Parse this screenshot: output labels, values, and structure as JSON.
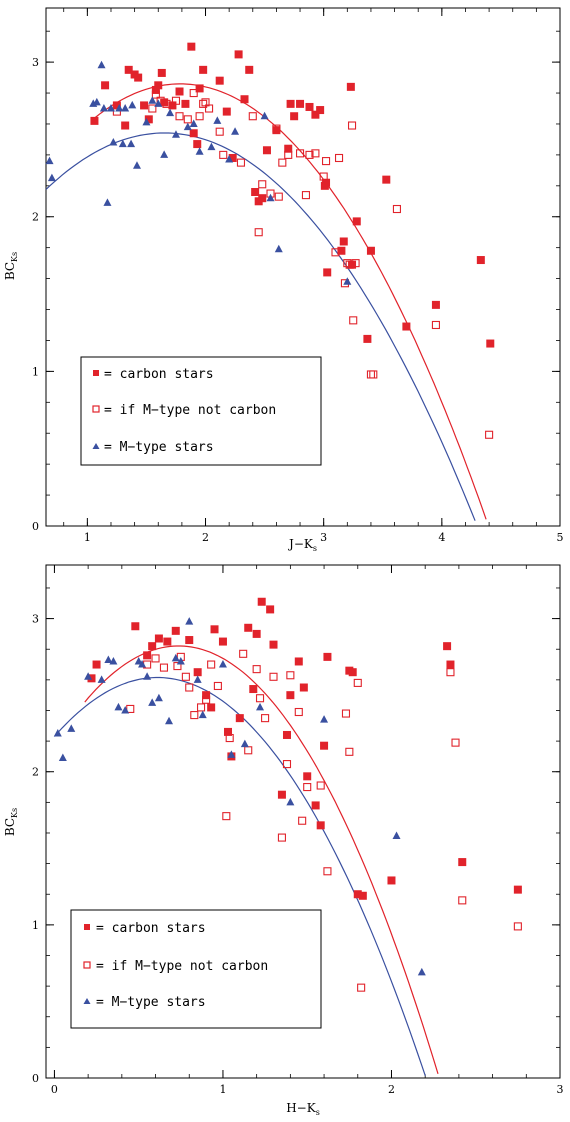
{
  "colors": {
    "carbon": "#e1232b",
    "mtype": "#3a50a0",
    "axis": "#000000"
  },
  "chart_data": [
    {
      "type": "scatter",
      "xlabel": "J−K",
      "xlabel_sub": "s",
      "ylabel": "BC",
      "ylabel_sub": "Ks",
      "xlim": [
        0.65,
        5.0
      ],
      "ylim": [
        0,
        3.35
      ],
      "xticks": [
        1,
        2,
        3,
        4,
        5
      ],
      "yticks": [
        0,
        1,
        2,
        3
      ],
      "legend": [
        {
          "marker": "filled-square",
          "label": "= carbon stars"
        },
        {
          "marker": "open-square",
          "label": "= if M−type not carbon"
        },
        {
          "marker": "triangle",
          "label": "= M−type stars"
        }
      ],
      "series": [
        {
          "marker": "filled-square",
          "x": [
            1.06,
            1.15,
            1.25,
            1.32,
            1.35,
            1.4,
            1.43,
            1.48,
            1.52,
            1.58,
            1.6,
            1.63,
            1.65,
            1.72,
            1.78,
            1.83,
            1.88,
            1.9,
            1.93,
            1.95,
            1.98,
            2.12,
            2.18,
            2.23,
            2.28,
            2.33,
            2.37,
            2.42,
            2.45,
            2.48,
            2.52,
            2.6,
            2.7,
            2.72,
            2.75,
            2.8,
            2.88,
            2.93,
            2.97,
            3.01,
            3.02,
            3.03,
            3.15,
            3.17,
            3.23,
            3.24,
            3.28,
            3.37,
            3.4,
            3.53,
            3.7,
            3.95,
            4.33,
            4.41
          ],
          "y": [
            2.62,
            2.85,
            2.72,
            2.59,
            2.95,
            2.92,
            2.9,
            2.72,
            2.63,
            2.82,
            2.85,
            2.93,
            2.74,
            2.72,
            2.81,
            2.73,
            3.1,
            2.54,
            2.47,
            2.83,
            2.95,
            2.88,
            2.68,
            2.38,
            3.05,
            2.76,
            2.95,
            2.16,
            2.1,
            2.12,
            2.43,
            2.56,
            2.44,
            2.73,
            2.65,
            2.73,
            2.71,
            2.66,
            2.69,
            2.2,
            2.22,
            1.64,
            1.78,
            1.84,
            2.84,
            1.69,
            1.97,
            1.21,
            1.78,
            2.24,
            1.29,
            1.43,
            1.72,
            1.18
          ]
        },
        {
          "marker": "open-square",
          "x": [
            1.25,
            1.55,
            1.58,
            1.62,
            1.67,
            1.75,
            1.78,
            1.85,
            1.9,
            1.95,
            1.98,
            2.0,
            2.03,
            2.12,
            2.15,
            2.3,
            2.4,
            2.45,
            2.48,
            2.55,
            2.6,
            2.62,
            2.65,
            2.7,
            2.8,
            2.85,
            2.88,
            2.93,
            3.0,
            3.02,
            3.1,
            3.13,
            3.18,
            3.2,
            3.22,
            3.24,
            3.25,
            3.27,
            3.4,
            3.42,
            3.62,
            3.95,
            4.4
          ],
          "y": [
            2.68,
            2.7,
            2.79,
            2.75,
            2.73,
            2.75,
            2.65,
            2.63,
            2.8,
            2.65,
            2.73,
            2.74,
            2.7,
            2.55,
            2.4,
            2.35,
            2.65,
            1.9,
            2.21,
            2.15,
            2.57,
            2.13,
            2.35,
            2.4,
            2.41,
            2.14,
            2.4,
            2.41,
            2.26,
            2.36,
            1.77,
            2.38,
            1.57,
            1.7,
            1.69,
            2.59,
            1.33,
            1.7,
            0.98,
            0.98,
            2.05,
            1.3,
            0.59
          ]
        },
        {
          "marker": "triangle",
          "x": [
            0.68,
            0.7,
            1.05,
            1.08,
            1.12,
            1.14,
            1.17,
            1.2,
            1.22,
            1.27,
            1.3,
            1.32,
            1.37,
            1.38,
            1.42,
            1.5,
            1.55,
            1.6,
            1.65,
            1.7,
            1.75,
            1.85,
            1.9,
            1.95,
            2.05,
            2.1,
            2.2,
            2.25,
            2.5,
            2.55,
            2.62,
            3.2
          ],
          "y": [
            2.36,
            2.25,
            2.73,
            2.74,
            2.98,
            2.7,
            2.09,
            2.7,
            2.48,
            2.7,
            2.47,
            2.7,
            2.47,
            2.72,
            2.33,
            2.61,
            2.75,
            2.73,
            2.4,
            2.67,
            2.53,
            2.58,
            2.6,
            2.42,
            2.45,
            2.62,
            2.37,
            2.55,
            2.65,
            2.12,
            1.79,
            1.58
          ]
        }
      ],
      "fit_lines": [
        {
          "color_key": "carbon",
          "coef": [
            1.52,
            1.5,
            -0.42
          ],
          "x_range": [
            1.05,
            4.85
          ]
        },
        {
          "color_key": "mtype",
          "coef": [
            1.55,
            1.2,
            -0.363
          ],
          "x_range": [
            0.65,
            4.8
          ]
        }
      ]
    },
    {
      "type": "scatter",
      "xlabel": "H−K",
      "xlabel_sub": "s",
      "ylabel": "BC",
      "ylabel_sub": "Ks",
      "xlim": [
        -0.05,
        3.0
      ],
      "ylim": [
        0,
        3.35
      ],
      "xticks": [
        0,
        1,
        2,
        3
      ],
      "yticks": [
        0,
        1,
        2,
        3
      ],
      "legend": [
        {
          "marker": "filled-square",
          "label": "= carbon stars"
        },
        {
          "marker": "open-square",
          "label": "= if M−type not carbon"
        },
        {
          "marker": "triangle",
          "label": "= M−type stars"
        }
      ],
      "series": [
        {
          "marker": "filled-square",
          "x": [
            0.22,
            0.25,
            0.48,
            0.55,
            0.58,
            0.62,
            0.67,
            0.72,
            0.8,
            0.85,
            0.9,
            0.93,
            0.95,
            1.0,
            1.03,
            1.05,
            1.1,
            1.15,
            1.18,
            1.2,
            1.23,
            1.28,
            1.3,
            1.35,
            1.38,
            1.4,
            1.45,
            1.48,
            1.5,
            1.55,
            1.58,
            1.6,
            1.62,
            1.75,
            1.77,
            1.8,
            1.83,
            2.0,
            2.33,
            2.35,
            2.42,
            2.75
          ],
          "y": [
            2.61,
            2.7,
            2.95,
            2.76,
            2.82,
            2.87,
            2.85,
            2.92,
            2.86,
            2.65,
            2.5,
            2.42,
            2.93,
            2.85,
            2.26,
            2.1,
            2.35,
            2.94,
            2.54,
            2.9,
            3.11,
            3.06,
            2.83,
            1.85,
            2.24,
            2.5,
            2.72,
            2.55,
            1.97,
            1.78,
            1.65,
            2.17,
            2.75,
            2.66,
            2.65,
            1.2,
            1.19,
            1.29,
            2.82,
            2.7,
            1.41,
            1.23
          ]
        },
        {
          "marker": "open-square",
          "x": [
            0.45,
            0.55,
            0.6,
            0.65,
            0.73,
            0.75,
            0.78,
            0.8,
            0.83,
            0.87,
            0.9,
            0.93,
            0.97,
            1.02,
            1.04,
            1.12,
            1.15,
            1.2,
            1.22,
            1.25,
            1.3,
            1.35,
            1.38,
            1.4,
            1.45,
            1.47,
            1.5,
            1.58,
            1.62,
            1.73,
            1.75,
            1.8,
            1.82,
            2.35,
            2.38,
            2.42,
            2.75
          ],
          "y": [
            2.41,
            2.7,
            2.74,
            2.68,
            2.69,
            2.75,
            2.62,
            2.55,
            2.37,
            2.42,
            2.47,
            2.7,
            2.56,
            1.71,
            2.22,
            2.77,
            2.14,
            2.67,
            2.48,
            2.35,
            2.62,
            1.57,
            2.05,
            2.63,
            2.39,
            1.68,
            1.9,
            1.91,
            1.35,
            2.38,
            2.13,
            2.58,
            0.59,
            2.65,
            2.19,
            1.16,
            0.99
          ]
        },
        {
          "marker": "triangle",
          "x": [
            0.02,
            0.05,
            0.1,
            0.2,
            0.28,
            0.32,
            0.35,
            0.38,
            0.42,
            0.5,
            0.52,
            0.55,
            0.58,
            0.62,
            0.68,
            0.72,
            0.75,
            0.8,
            0.85,
            0.88,
            1.0,
            1.05,
            1.13,
            1.22,
            1.4,
            1.6,
            2.03,
            2.18
          ],
          "y": [
            2.25,
            2.09,
            2.28,
            2.62,
            2.6,
            2.73,
            2.72,
            2.42,
            2.4,
            2.72,
            2.7,
            2.62,
            2.45,
            2.48,
            2.33,
            2.74,
            2.72,
            2.98,
            2.6,
            2.37,
            2.7,
            2.11,
            2.18,
            2.42,
            1.8,
            2.34,
            1.58,
            0.69
          ]
        }
      ],
      "fit_lines": [
        {
          "color_key": "carbon",
          "coef": [
            2.18,
            1.74,
            -1.18
          ],
          "x_range": [
            0.18,
            2.8
          ]
        },
        {
          "color_key": "mtype",
          "coef": [
            2.23,
            1.26,
            -1.03
          ],
          "x_range": [
            0.0,
            2.78
          ]
        }
      ]
    }
  ]
}
